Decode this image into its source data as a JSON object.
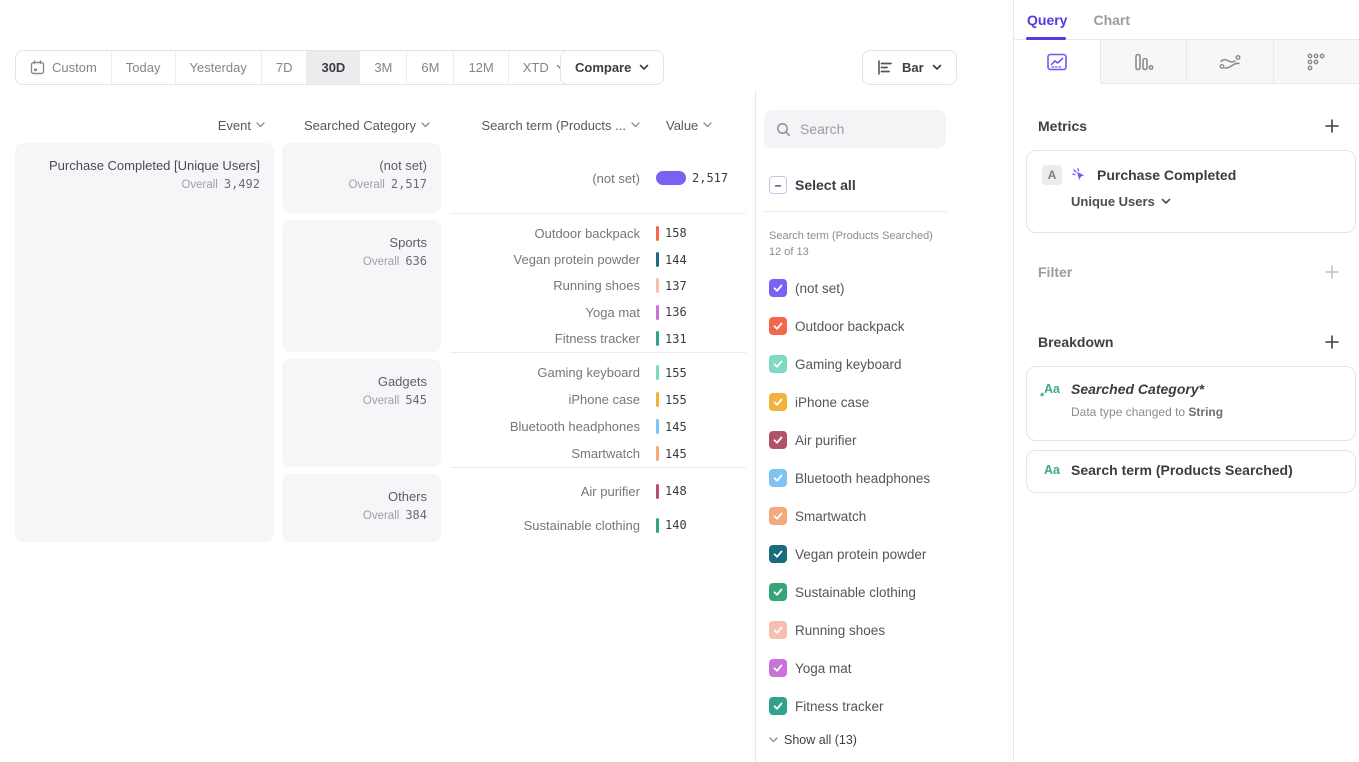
{
  "colors": {
    "accent_purple": "#4f3be0",
    "icon_purple": "#6d58f5",
    "breakdown_green": "#3fa984",
    "cell_bg": "#f6f6f8"
  },
  "toolbar": {
    "date_ranges": [
      "Custom",
      "Today",
      "Yesterday",
      "7D",
      "30D",
      "3M",
      "6M",
      "12M",
      "XTD"
    ],
    "selected_range": "30D",
    "compare_label": "Compare",
    "chart_type_label": "Bar"
  },
  "table": {
    "headers": {
      "event": "Event",
      "category": "Searched Category",
      "term": "Search term (Products ...",
      "value": "Value"
    },
    "event": {
      "name": "Purchase Completed [Unique Users]",
      "overall_label": "Overall",
      "overall": 3492
    },
    "overall_label": "Overall",
    "max_value": 2517,
    "groups": [
      {
        "category": "(not set)",
        "overall": 2517,
        "terms": [
          {
            "name": "(not set)",
            "value": 2517,
            "color": "#7b61f2"
          }
        ]
      },
      {
        "category": "Sports",
        "overall": 636,
        "terms": [
          {
            "name": "Outdoor backpack",
            "value": 158,
            "color": "#f4674e"
          },
          {
            "name": "Vegan protein powder",
            "value": 144,
            "color": "#1b6b80"
          },
          {
            "name": "Running shoes",
            "value": 137,
            "color": "#f6c0ae"
          },
          {
            "name": "Yoga mat",
            "value": 136,
            "color": "#c674d8"
          },
          {
            "name": "Fitness tracker",
            "value": 131,
            "color": "#2fa18c"
          }
        ]
      },
      {
        "category": "Gadgets",
        "overall": 545,
        "terms": [
          {
            "name": "Gaming keyboard",
            "value": 155,
            "color": "#7fd9c3"
          },
          {
            "name": "iPhone case",
            "value": 155,
            "color": "#f2b33d"
          },
          {
            "name": "Bluetooth headphones",
            "value": 145,
            "color": "#7ec3f1"
          },
          {
            "name": "Smartwatch",
            "value": 145,
            "color": "#f5a87e"
          }
        ]
      },
      {
        "category": "Others",
        "overall": 384,
        "terms": [
          {
            "name": "Air purifier",
            "value": 148,
            "color": "#b25268"
          },
          {
            "name": "Sustainable clothing",
            "value": 140,
            "color": "#37a579"
          }
        ]
      }
    ]
  },
  "legend_panel": {
    "search_placeholder": "Search",
    "select_all_label": "Select all",
    "list_label": "Search term (Products Searched) 12 of 13",
    "show_all_label": "Show all (13)",
    "items": [
      {
        "label": "(not set)",
        "color": "#7b61f2"
      },
      {
        "label": "Outdoor backpack",
        "color": "#f4674e"
      },
      {
        "label": "Gaming keyboard",
        "color": "#7fd9c3"
      },
      {
        "label": "iPhone case",
        "color": "#f2b33d"
      },
      {
        "label": "Air purifier",
        "color": "#b25268"
      },
      {
        "label": "Bluetooth headphones",
        "color": "#7ec3f1"
      },
      {
        "label": "Smartwatch",
        "color": "#f5a87e"
      },
      {
        "label": "Vegan protein powder",
        "color": "#1b6b80"
      },
      {
        "label": "Sustainable clothing",
        "color": "#37a579"
      },
      {
        "label": "Running shoes",
        "color": "#f6c0ae"
      },
      {
        "label": "Yoga mat",
        "color": "#c674d8"
      },
      {
        "label": "Fitness tracker",
        "color": "#2fa18c"
      }
    ]
  },
  "query_panel": {
    "tabs": {
      "query": "Query",
      "chart": "Chart"
    },
    "icon_tabs": [
      "insights",
      "funnels",
      "flows",
      "retention"
    ],
    "metrics": {
      "heading": "Metrics",
      "card": {
        "letter": "A",
        "title": "Purchase Completed",
        "subtitle": "Unique Users"
      }
    },
    "filter": {
      "heading": "Filter"
    },
    "breakdown": {
      "heading": "Breakdown",
      "cards": [
        {
          "icon": "Aa",
          "title": "Searched Category*",
          "italic": true,
          "subtitle_prefix": "Data type changed to ",
          "subtitle_bold": "String"
        },
        {
          "icon": "Aa",
          "title": "Search term (Products Searched)",
          "italic": false
        }
      ]
    }
  }
}
